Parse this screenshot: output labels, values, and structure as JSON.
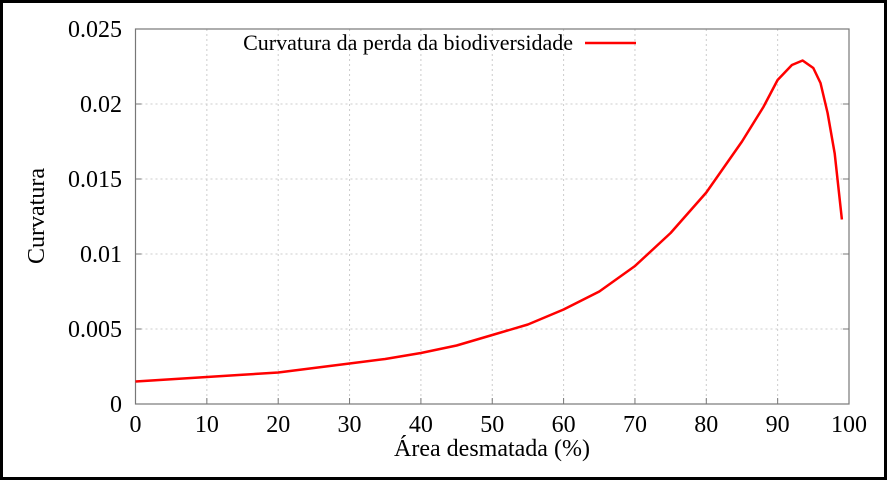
{
  "chart_data": {
    "type": "line",
    "title": "",
    "xlabel": "Área desmatada (%)",
    "ylabel": "Curvatura",
    "xlim": [
      0,
      100
    ],
    "ylim": [
      0,
      0.025
    ],
    "xticks": [
      "0",
      "10",
      "20",
      "30",
      "40",
      "50",
      "60",
      "70",
      "80",
      "90",
      "100"
    ],
    "yticks": [
      "0",
      "0.005",
      "0.01",
      "0.015",
      "0.02",
      "0.025"
    ],
    "grid": true,
    "legend_position": "top-center",
    "series": [
      {
        "name": "Curvatura da perda da biodiversidade",
        "color": "#ff0000",
        "x": [
          0,
          5,
          10,
          15,
          20,
          25,
          30,
          35,
          40,
          45,
          50,
          55,
          60,
          65,
          70,
          75,
          80,
          85,
          88,
          90,
          92,
          93.5,
          95,
          96,
          97,
          98,
          99
        ],
        "y": [
          0.0015,
          0.00165,
          0.0018,
          0.00195,
          0.0021,
          0.0024,
          0.0027,
          0.003,
          0.0034,
          0.0039,
          0.0046,
          0.0053,
          0.0063,
          0.0075,
          0.0092,
          0.0114,
          0.0141,
          0.0175,
          0.0198,
          0.0216,
          0.0226,
          0.0229,
          0.0224,
          0.0214,
          0.0194,
          0.0167,
          0.0123
        ]
      }
    ]
  }
}
